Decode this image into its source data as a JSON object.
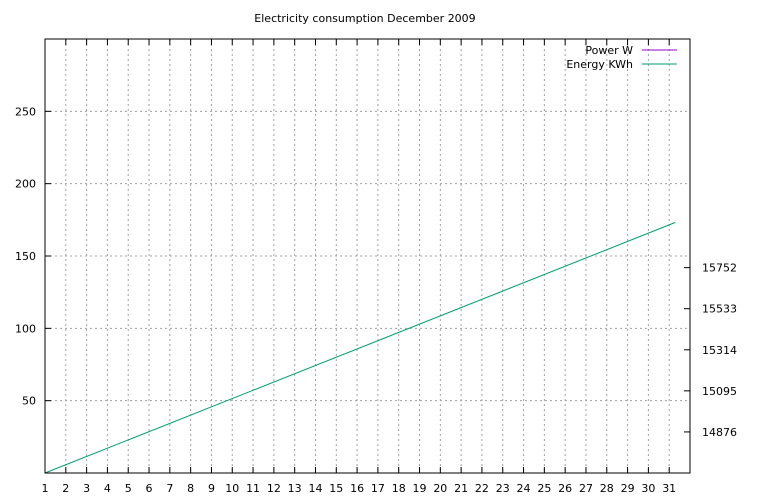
{
  "chart_data": {
    "type": "line",
    "title": "Electricity consumption December 2009",
    "xlabel": "",
    "ylabel": "",
    "y2label": "",
    "xlim": [
      1,
      32
    ],
    "ylim": [
      0,
      300
    ],
    "y2lim": [
      14657,
      16971
    ],
    "x_ticks": [
      1,
      2,
      3,
      4,
      5,
      6,
      7,
      8,
      9,
      10,
      11,
      12,
      13,
      14,
      15,
      16,
      17,
      18,
      19,
      20,
      21,
      22,
      23,
      24,
      25,
      26,
      27,
      28,
      29,
      30,
      31
    ],
    "y_ticks": [
      50,
      100,
      150,
      200,
      250
    ],
    "y2_ticks": [
      14876,
      15095,
      15314,
      15533,
      15752
    ],
    "grid": true,
    "legend_position": "top-right",
    "series": [
      {
        "name": "Power W",
        "axis": "y",
        "color": "#9400d3",
        "x": [],
        "y": []
      },
      {
        "name": "Energy KWh",
        "axis": "y2",
        "color": "#009e73",
        "x": [
          1,
          31.3
        ],
        "y": [
          14657,
          15993
        ]
      }
    ]
  }
}
